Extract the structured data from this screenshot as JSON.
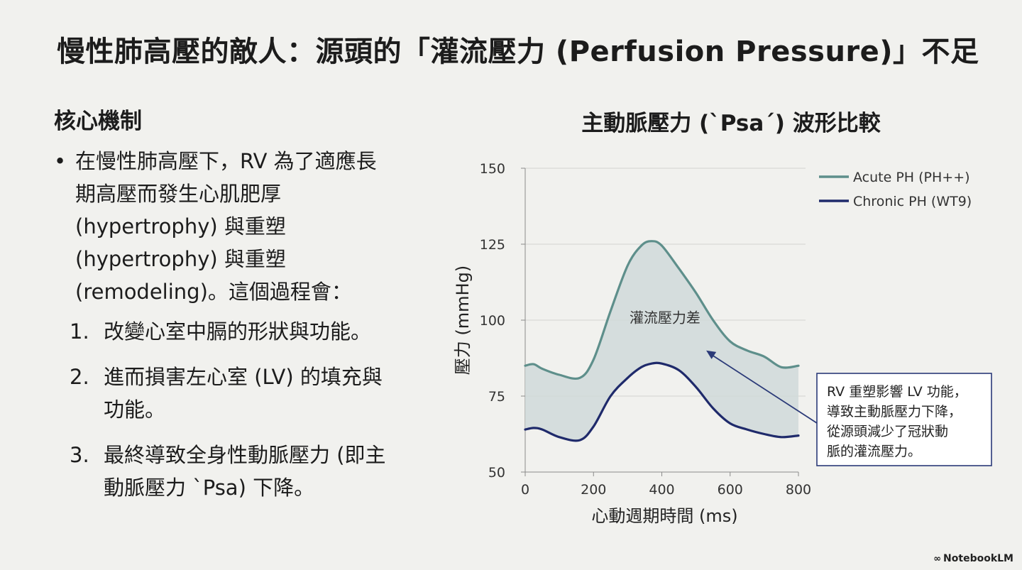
{
  "slide": {
    "title": "慢性肺高壓的敵人：源頭的「灌流壓力 (Perfusion Pressure)」不足"
  },
  "left": {
    "heading": "核心機制",
    "bullet_dot": "•",
    "bullet_lines": [
      "在慢性肺高壓下，RV 為了適應長",
      "期高壓而發生心肌肥厚",
      "(hypertrophy) 與重塑",
      "(hypertrophy) 與重塑",
      "(remodeling)。這個過程會："
    ],
    "steps": [
      {
        "num": "1.",
        "lines": [
          "改變心室中膈的形狀與功能。"
        ]
      },
      {
        "num": "2.",
        "lines": [
          "進而損害左心室 (LV) 的填充與",
          "功能。"
        ]
      },
      {
        "num": "3.",
        "lines": [
          "最終導致全身性動脈壓力 (即主",
          "動脈壓力 `Psa) 下降。"
        ]
      }
    ]
  },
  "chart_data": {
    "type": "line",
    "title": "主動脈壓力 (`Psa´) 波形比較",
    "xlabel": "心動週期時間 (ms)",
    "ylabel": "壓力 (mmHg)",
    "xlim": [
      0,
      800
    ],
    "ylim": [
      50,
      150
    ],
    "xticks": [
      0,
      200,
      400,
      600,
      800
    ],
    "yticks": [
      50,
      75,
      100,
      125,
      150
    ],
    "grid": "horizontal",
    "legend_position": "top-right",
    "x": [
      0,
      25,
      50,
      100,
      160,
      200,
      250,
      300,
      340,
      370,
      400,
      450,
      500,
      550,
      600,
      650,
      700,
      750,
      800
    ],
    "series": [
      {
        "name": "Acute PH (PH++)",
        "color": "#5e8f8b",
        "values": [
          85,
          85.5,
          84,
          82,
          81,
          87,
          103,
          118,
          124.5,
          126,
          124.5,
          117,
          109,
          100,
          93,
          90,
          88,
          84.5,
          85
        ]
      },
      {
        "name": "Chronic PH (WT9)",
        "color": "#1f2a6b",
        "values": [
          64,
          64.5,
          64,
          61.5,
          60.5,
          65,
          75,
          81,
          84.5,
          85.7,
          85.7,
          83.5,
          78,
          71,
          66,
          64,
          62.5,
          61.5,
          62
        ]
      }
    ],
    "fill_between": {
      "color": "#d0d9d9"
    },
    "region_label": {
      "text": "灌流壓力差",
      "x": 430,
      "y": 101
    },
    "annotation": {
      "lines": [
        "RV 重塑影響 LV 功能，",
        "導致主動脈壓力下降，",
        "從源頭減少了冠狀動",
        "脈的灌流壓力。"
      ],
      "arrow_target": {
        "x": 530,
        "y": 90
      }
    }
  },
  "watermark": {
    "text": "NotebookLM",
    "logo": "∞"
  }
}
